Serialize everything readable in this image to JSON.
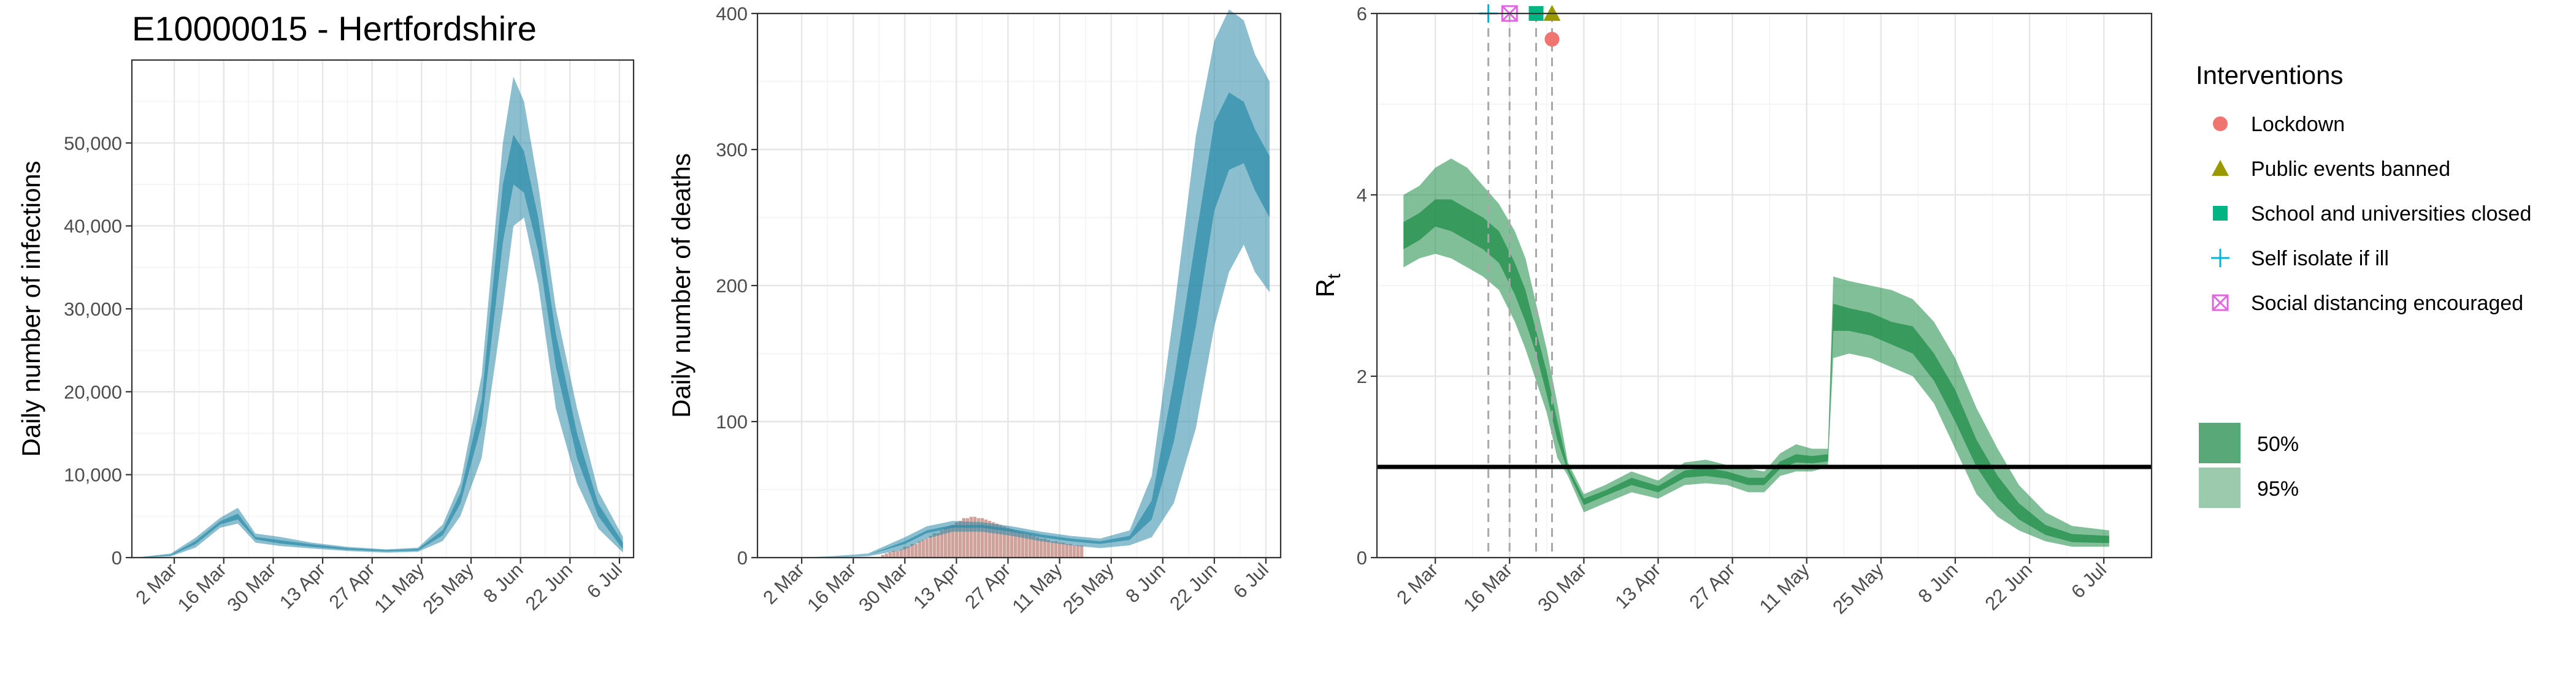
{
  "title": "E10000015 - Hertfordshire",
  "chart_data": [
    {
      "type": "area",
      "panel": "infections",
      "title": "E10000015 - Hertfordshire",
      "xlabel": "",
      "ylabel": "Daily number of infections",
      "x_ticks": [
        "2 Mar",
        "16 Mar",
        "30 Mar",
        "13 Apr",
        "27 Apr",
        "11 May",
        "25 May",
        "8 Jun",
        "22 Jun",
        "6 Jul"
      ],
      "y_ticks": [
        "0",
        "10,000",
        "20,000",
        "30,000",
        "40,000",
        "50,000"
      ],
      "ylim": [
        0,
        60000
      ],
      "grid": true,
      "color": "#2b8aa8",
      "x": [
        "2020-02-20",
        "2020-03-01",
        "2020-03-08",
        "2020-03-15",
        "2020-03-20",
        "2020-03-25",
        "2020-04-01",
        "2020-04-10",
        "2020-04-20",
        "2020-05-01",
        "2020-05-10",
        "2020-05-17",
        "2020-05-22",
        "2020-05-28",
        "2020-06-03",
        "2020-06-06",
        "2020-06-09",
        "2020-06-13",
        "2020-06-18",
        "2020-06-24",
        "2020-06-30",
        "2020-07-07"
      ],
      "series": [
        {
          "name": "95%",
          "lower": [
            0,
            150,
            1200,
            3600,
            4100,
            1800,
            1400,
            1100,
            800,
            600,
            700,
            2000,
            5000,
            12000,
            30000,
            40000,
            41000,
            33000,
            18000,
            9000,
            3500,
            600
          ],
          "upper": [
            0,
            500,
            2400,
            4800,
            6000,
            2900,
            2500,
            1800,
            1300,
            1000,
            1200,
            4000,
            9000,
            22000,
            50000,
            58000,
            55000,
            45000,
            30000,
            18000,
            8000,
            2500
          ]
        },
        {
          "name": "50%",
          "lower": [
            0,
            250,
            1600,
            4000,
            4600,
            2200,
            1700,
            1300,
            950,
            750,
            850,
            2700,
            6500,
            16000,
            38000,
            45000,
            44000,
            37000,
            23000,
            12000,
            5000,
            1000
          ],
          "upper": [
            0,
            350,
            2000,
            4400,
            5300,
            2500,
            2100,
            1600,
            1150,
            900,
            1050,
            3300,
            7800,
            19000,
            45000,
            51000,
            49000,
            41000,
            27000,
            15000,
            6500,
            1800
          ]
        }
      ]
    },
    {
      "type": "area",
      "panel": "deaths",
      "xlabel": "",
      "ylabel": "Daily number of deaths",
      "x_ticks": [
        "2 Mar",
        "16 Mar",
        "30 Mar",
        "13 Apr",
        "27 Apr",
        "11 May",
        "25 May",
        "8 Jun",
        "22 Jun",
        "6 Jul"
      ],
      "y_ticks": [
        "0",
        "100",
        "200",
        "300",
        "400"
      ],
      "ylim": [
        0,
        400
      ],
      "grid": true,
      "color": "#2b8aa8",
      "bar_color": "#c9928a",
      "x": [
        "2020-02-20",
        "2020-03-01",
        "2020-03-10",
        "2020-03-20",
        "2020-03-30",
        "2020-04-05",
        "2020-04-12",
        "2020-04-20",
        "2020-04-28",
        "2020-05-06",
        "2020-05-14",
        "2020-05-22",
        "2020-05-30",
        "2020-06-05",
        "2020-06-11",
        "2020-06-17",
        "2020-06-22",
        "2020-06-26",
        "2020-06-30",
        "2020-07-03",
        "2020-07-07"
      ],
      "series": [
        {
          "name": "95%",
          "lower": [
            0,
            0,
            0,
            1,
            6,
            14,
            19,
            19,
            16,
            12,
            9,
            7,
            9,
            15,
            40,
            95,
            170,
            210,
            230,
            210,
            195
          ],
          "upper": [
            0,
            0,
            1,
            3,
            15,
            23,
            27,
            26,
            23,
            19,
            16,
            14,
            20,
            60,
            180,
            310,
            380,
            403,
            395,
            370,
            350
          ]
        },
        {
          "name": "50%",
          "lower": [
            0,
            0,
            0,
            2,
            10,
            18,
            22,
            22,
            19,
            15,
            12,
            10,
            13,
            28,
            85,
            170,
            255,
            285,
            290,
            270,
            250
          ],
          "upper": [
            0,
            0,
            0,
            2,
            12,
            20,
            24,
            24,
            21,
            17,
            14,
            12,
            16,
            42,
            130,
            235,
            320,
            342,
            335,
            315,
            295
          ]
        }
      ],
      "bars": {
        "x": [
          "2020-03-24",
          "2020-03-25",
          "2020-03-26",
          "2020-03-27",
          "2020-03-28",
          "2020-03-29",
          "2020-03-30",
          "2020-03-31",
          "2020-04-01",
          "2020-04-02",
          "2020-04-03",
          "2020-04-04",
          "2020-04-05",
          "2020-04-06",
          "2020-04-07",
          "2020-04-08",
          "2020-04-09",
          "2020-04-10",
          "2020-04-11",
          "2020-04-12",
          "2020-04-13",
          "2020-04-14",
          "2020-04-15",
          "2020-04-16",
          "2020-04-17",
          "2020-04-18",
          "2020-04-19",
          "2020-04-20",
          "2020-04-21",
          "2020-04-22",
          "2020-04-23",
          "2020-04-24",
          "2020-04-25",
          "2020-04-26",
          "2020-04-27",
          "2020-04-28",
          "2020-04-29",
          "2020-04-30",
          "2020-05-01",
          "2020-05-02",
          "2020-05-03",
          "2020-05-04",
          "2020-05-05",
          "2020-05-06",
          "2020-05-07",
          "2020-05-08",
          "2020-05-09",
          "2020-05-10",
          "2020-05-11",
          "2020-05-12",
          "2020-05-13",
          "2020-05-14",
          "2020-05-15",
          "2020-05-16",
          "2020-05-17"
        ],
        "values": [
          2,
          3,
          4,
          5,
          5,
          6,
          8,
          8,
          10,
          10,
          12,
          13,
          14,
          16,
          18,
          18,
          20,
          22,
          23,
          24,
          26,
          27,
          29,
          29,
          30,
          30,
          29,
          29,
          28,
          27,
          26,
          25,
          24,
          23,
          22,
          21,
          20,
          19,
          18,
          17,
          17,
          16,
          15,
          14,
          14,
          13,
          12,
          12,
          11,
          11,
          10,
          10,
          9,
          9,
          9
        ]
      }
    },
    {
      "type": "area",
      "panel": "rt",
      "xlabel": "",
      "ylabel": "R",
      "ylabel_subscript": "t",
      "x_ticks": [
        "2 Mar",
        "16 Mar",
        "30 Mar",
        "13 Apr",
        "27 Apr",
        "11 May",
        "25 May",
        "8 Jun",
        "22 Jun",
        "6 Jul"
      ],
      "y_ticks": [
        "0",
        "2",
        "4",
        "6"
      ],
      "ylim": [
        0,
        6
      ],
      "grid": true,
      "reference_line": 1,
      "color": "#1a8a44",
      "x": [
        "2020-02-25",
        "2020-02-28",
        "2020-03-02",
        "2020-03-05",
        "2020-03-08",
        "2020-03-11",
        "2020-03-14",
        "2020-03-17",
        "2020-03-19",
        "2020-03-21",
        "2020-03-23",
        "2020-03-25",
        "2020-03-27",
        "2020-03-30",
        "2020-04-03",
        "2020-04-08",
        "2020-04-13",
        "2020-04-18",
        "2020-04-22",
        "2020-04-26",
        "2020-04-30",
        "2020-05-03",
        "2020-05-06",
        "2020-05-09",
        "2020-05-12",
        "2020-05-15",
        "2020-05-16",
        "2020-05-19",
        "2020-05-23",
        "2020-05-27",
        "2020-05-31",
        "2020-06-04",
        "2020-06-08",
        "2020-06-12",
        "2020-06-16",
        "2020-06-20",
        "2020-06-25",
        "2020-06-30",
        "2020-07-07"
      ],
      "series": [
        {
          "name": "95%",
          "lower": [
            3.2,
            3.3,
            3.35,
            3.3,
            3.2,
            3.1,
            2.95,
            2.6,
            2.3,
            1.95,
            1.6,
            1.1,
            0.9,
            0.5,
            0.6,
            0.72,
            0.65,
            0.8,
            0.82,
            0.8,
            0.72,
            0.72,
            0.9,
            0.95,
            0.95,
            1.0,
            2.2,
            2.25,
            2.2,
            2.1,
            2.0,
            1.7,
            1.2,
            0.7,
            0.45,
            0.3,
            0.18,
            0.12,
            0.12
          ],
          "upper": [
            4.0,
            4.1,
            4.3,
            4.4,
            4.3,
            4.1,
            3.9,
            3.6,
            3.3,
            2.8,
            2.3,
            1.7,
            1.05,
            0.7,
            0.8,
            0.95,
            0.85,
            1.05,
            1.08,
            1.02,
            0.98,
            0.95,
            1.15,
            1.25,
            1.2,
            1.2,
            3.1,
            3.05,
            3.0,
            2.95,
            2.85,
            2.6,
            2.2,
            1.65,
            1.2,
            0.8,
            0.5,
            0.35,
            0.3
          ]
        },
        {
          "name": "50%",
          "lower": [
            3.4,
            3.5,
            3.65,
            3.6,
            3.5,
            3.4,
            3.25,
            2.9,
            2.6,
            2.25,
            1.8,
            1.3,
            0.95,
            0.58,
            0.68,
            0.8,
            0.72,
            0.88,
            0.9,
            0.87,
            0.8,
            0.8,
            0.98,
            1.05,
            1.04,
            1.06,
            2.5,
            2.5,
            2.45,
            2.35,
            2.25,
            1.95,
            1.5,
            1.0,
            0.65,
            0.42,
            0.25,
            0.17,
            0.16
          ],
          "upper": [
            3.7,
            3.8,
            3.95,
            3.95,
            3.85,
            3.75,
            3.6,
            3.25,
            2.95,
            2.5,
            2.05,
            1.5,
            1.0,
            0.65,
            0.74,
            0.88,
            0.79,
            0.96,
            0.99,
            0.95,
            0.88,
            0.88,
            1.06,
            1.14,
            1.12,
            1.14,
            2.8,
            2.75,
            2.7,
            2.6,
            2.55,
            2.25,
            1.85,
            1.3,
            0.9,
            0.6,
            0.36,
            0.26,
            0.24
          ]
        }
      ],
      "interventions": [
        {
          "label": "Self isolate if ill",
          "date": "2020-03-12",
          "shape": "plus",
          "color": "#00b4d8"
        },
        {
          "label": "Social distancing encouraged",
          "date": "2020-03-16",
          "shape": "square-x",
          "color": "#e066e0"
        },
        {
          "label": "School and universities closed",
          "date": "2020-03-21",
          "shape": "square",
          "color": "#00b581"
        },
        {
          "label": "Public events banned",
          "date": "2020-03-24",
          "shape": "triangle",
          "color": "#9a9a00"
        },
        {
          "label": "Lockdown",
          "date": "2020-03-24",
          "shape": "circle",
          "color": "#f07470"
        }
      ]
    }
  ],
  "legend": {
    "interventions_title": "Interventions",
    "interventions": [
      {
        "label": "Lockdown",
        "shape": "circle",
        "color": "#f07470"
      },
      {
        "label": "Public events banned",
        "shape": "triangle",
        "color": "#9a9a00"
      },
      {
        "label": "School and universities closed",
        "shape": "square",
        "color": "#00b581"
      },
      {
        "label": "Self isolate if ill",
        "shape": "plus",
        "color": "#00b4d8"
      },
      {
        "label": "Social distancing encouraged",
        "shape": "square-x",
        "color": "#e066e0"
      }
    ],
    "intervals": [
      {
        "label": "50%",
        "color": "#58a878"
      },
      {
        "label": "95%",
        "color": "#9bcaad"
      }
    ]
  }
}
